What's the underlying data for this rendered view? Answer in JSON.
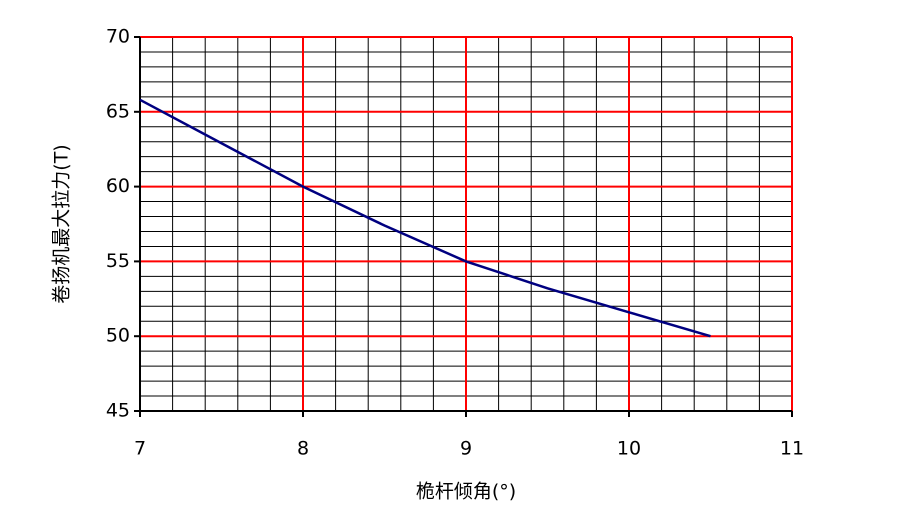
{
  "chart_data": {
    "type": "line",
    "x_label": "桅杆倾角(°)",
    "y_label": "卷扬机最大拉力(T)",
    "x": [
      7,
      7.5,
      8,
      8.5,
      9,
      9.5,
      10,
      10.5
    ],
    "series": [
      {
        "color": "#000080",
        "values": [
          65.8,
          62.9,
          60,
          57.4,
          55,
          53.2,
          51.6,
          50
        ]
      }
    ],
    "xlim": [
      7,
      11
    ],
    "xticks": [
      7,
      8,
      9,
      10,
      11
    ],
    "ylim": [
      45,
      70
    ],
    "yticks": [
      45,
      50,
      55,
      60,
      65,
      70
    ],
    "grid": true,
    "grid_color": "#ff0000",
    "minor_grid": {
      "x": 5,
      "y": 5,
      "color": "#000000"
    }
  }
}
